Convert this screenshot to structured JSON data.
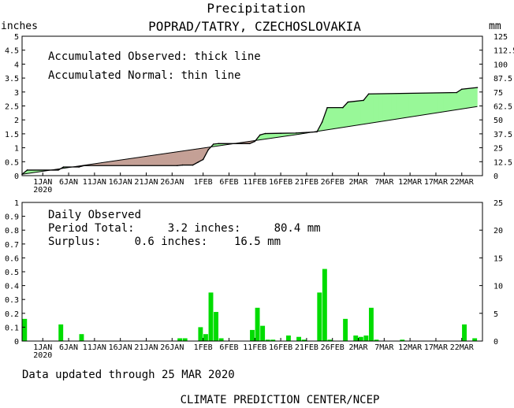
{
  "header": {
    "title": "Precipitation",
    "station": "POPRAD/TATRY, CZECHOSLOVAKIA",
    "unit_left": "inches",
    "unit_right": "mm"
  },
  "top_panel": {
    "legend_line1": "Accumulated Observed: thick line",
    "legend_line2": "Accumulated Normal: thin line"
  },
  "bottom_panel": {
    "heading": "Daily Observed",
    "total_line": "Period Total:     3.2 inches:     80.4 mm",
    "surplus_line": "Surplus:     0.6 inches:    16.5 mm"
  },
  "footer": {
    "updated": "Data updated through 25 MAR 2020",
    "credit": "CLIMATE PREDICTION CENTER/NCEP"
  },
  "colors": {
    "surplus_fill": "#98f898",
    "deficit_fill": "#c4a096",
    "bar": "#00dc00",
    "line": "#000000"
  },
  "chart_data": [
    {
      "type": "area",
      "xlabel": "",
      "ylabel": "inches",
      "y2label": "mm",
      "x_range": [
        "2019-12-28",
        "2020-03-26"
      ],
      "ylim": [
        0,
        5
      ],
      "y2lim": [
        0,
        125
      ],
      "yticks": [
        0,
        0.5,
        1,
        1.5,
        2,
        2.5,
        3,
        3.5,
        4,
        4.5,
        5
      ],
      "yticklabels": [
        "0",
        "0.5",
        "1",
        "1.5",
        "2",
        "2.5",
        "3",
        "3.5",
        "4",
        "4.5",
        "5"
      ],
      "y2ticks": [
        0,
        12.5,
        25,
        37.5,
        50,
        62.5,
        75,
        87.5,
        100,
        112.5,
        125
      ],
      "y2ticklabels": [
        "0",
        "12.5",
        "25",
        "37.5",
        "50",
        "62.5",
        "75",
        "87.5",
        "100",
        "112.5",
        "125"
      ],
      "xticks": [
        "2020-01-01",
        "2020-01-06",
        "2020-01-11",
        "2020-01-16",
        "2020-01-21",
        "2020-01-26",
        "2020-02-01",
        "2020-02-06",
        "2020-02-11",
        "2020-02-16",
        "2020-02-21",
        "2020-02-26",
        "2020-03-02",
        "2020-03-07",
        "2020-03-12",
        "2020-03-17",
        "2020-03-22"
      ],
      "xticklabels": [
        "1JAN",
        "6JAN",
        "11JAN",
        "16JAN",
        "21JAN",
        "26JAN",
        "1FEB",
        "6FEB",
        "11FEB",
        "16FEB",
        "21FEB",
        "26FEB",
        "2MAR",
        "7MAR",
        "12MAR",
        "17MAR",
        "22MAR"
      ],
      "year_label": "2020",
      "series": [
        {
          "name": "Accumulated Observed",
          "x": [
            "2019-12-28",
            "2019-12-29",
            "2020-01-04",
            "2020-01-05",
            "2020-01-08",
            "2020-01-09",
            "2020-01-27",
            "2020-01-28",
            "2020-01-30",
            "2020-01-31",
            "2020-02-01",
            "2020-02-02",
            "2020-02-03",
            "2020-02-04",
            "2020-02-10",
            "2020-02-11",
            "2020-02-12",
            "2020-02-13",
            "2020-02-16",
            "2020-02-19",
            "2020-02-21",
            "2020-02-23",
            "2020-02-24",
            "2020-02-25",
            "2020-02-28",
            "2020-02-29",
            "2020-03-03",
            "2020-03-04",
            "2020-03-21",
            "2020-03-22",
            "2020-03-25"
          ],
          "y": [
            0.05,
            0.2,
            0.2,
            0.31,
            0.31,
            0.36,
            0.36,
            0.38,
            0.38,
            0.48,
            0.58,
            0.93,
            1.13,
            1.15,
            1.15,
            1.23,
            1.46,
            1.51,
            1.52,
            1.53,
            1.55,
            1.57,
            1.92,
            2.44,
            2.44,
            2.64,
            2.7,
            2.93,
            2.98,
            3.1,
            3.16
          ]
        },
        {
          "name": "Accumulated Normal",
          "x": [
            "2019-12-28",
            "2020-02-20",
            "2020-03-25"
          ],
          "y": [
            0.05,
            1.5,
            2.48
          ]
        }
      ]
    },
    {
      "type": "bar",
      "xlabel": "",
      "ylabel": "inches",
      "y2label": "mm",
      "x_range": [
        "2019-12-28",
        "2020-03-26"
      ],
      "ylim": [
        0,
        1
      ],
      "y2lim": [
        0,
        25
      ],
      "yticks": [
        0,
        0.1,
        0.2,
        0.3,
        0.4,
        0.5,
        0.6,
        0.7,
        0.8,
        0.9,
        1
      ],
      "yticklabels": [
        "0",
        "0.1",
        "0.2",
        "0.3",
        "0.4",
        "0.5",
        "0.6",
        "0.7",
        "0.8",
        "0.9",
        "1"
      ],
      "y2ticks": [
        0,
        5,
        10,
        15,
        20,
        25
      ],
      "y2ticklabels": [
        "0",
        "5",
        "10",
        "15",
        "20",
        "25"
      ],
      "xticks": [
        "2020-01-01",
        "2020-01-06",
        "2020-01-11",
        "2020-01-16",
        "2020-01-21",
        "2020-01-26",
        "2020-02-01",
        "2020-02-06",
        "2020-02-11",
        "2020-02-16",
        "2020-02-21",
        "2020-02-26",
        "2020-03-02",
        "2020-03-07",
        "2020-03-12",
        "2020-03-17",
        "2020-03-22"
      ],
      "xticklabels": [
        "1JAN",
        "6JAN",
        "11JAN",
        "16JAN",
        "21JAN",
        "26JAN",
        "1FEB",
        "6FEB",
        "11FEB",
        "16FEB",
        "21FEB",
        "26FEB",
        "2MAR",
        "7MAR",
        "12MAR",
        "17MAR",
        "22MAR"
      ],
      "year_label": "2020",
      "series": [
        {
          "name": "Daily Observed",
          "x": [
            "2019-12-28",
            "2020-01-04",
            "2020-01-08",
            "2020-01-27",
            "2020-01-28",
            "2020-01-31",
            "2020-02-01",
            "2020-02-02",
            "2020-02-03",
            "2020-02-04",
            "2020-02-10",
            "2020-02-11",
            "2020-02-12",
            "2020-02-13",
            "2020-02-14",
            "2020-02-17",
            "2020-02-19",
            "2020-02-20",
            "2020-02-23",
            "2020-02-24",
            "2020-02-25",
            "2020-02-28",
            "2020-03-01",
            "2020-03-02",
            "2020-03-03",
            "2020-03-04",
            "2020-03-05",
            "2020-03-10",
            "2020-03-22",
            "2020-03-24"
          ],
          "y": [
            0.16,
            0.12,
            0.05,
            0.02,
            0.02,
            0.1,
            0.05,
            0.35,
            0.21,
            0.02,
            0.08,
            0.24,
            0.11,
            0.01,
            0.01,
            0.04,
            0.03,
            0.01,
            0.35,
            0.52,
            0.01,
            0.16,
            0.04,
            0.03,
            0.04,
            0.24,
            0.01,
            0.01,
            0.12,
            0.02
          ]
        }
      ]
    }
  ]
}
